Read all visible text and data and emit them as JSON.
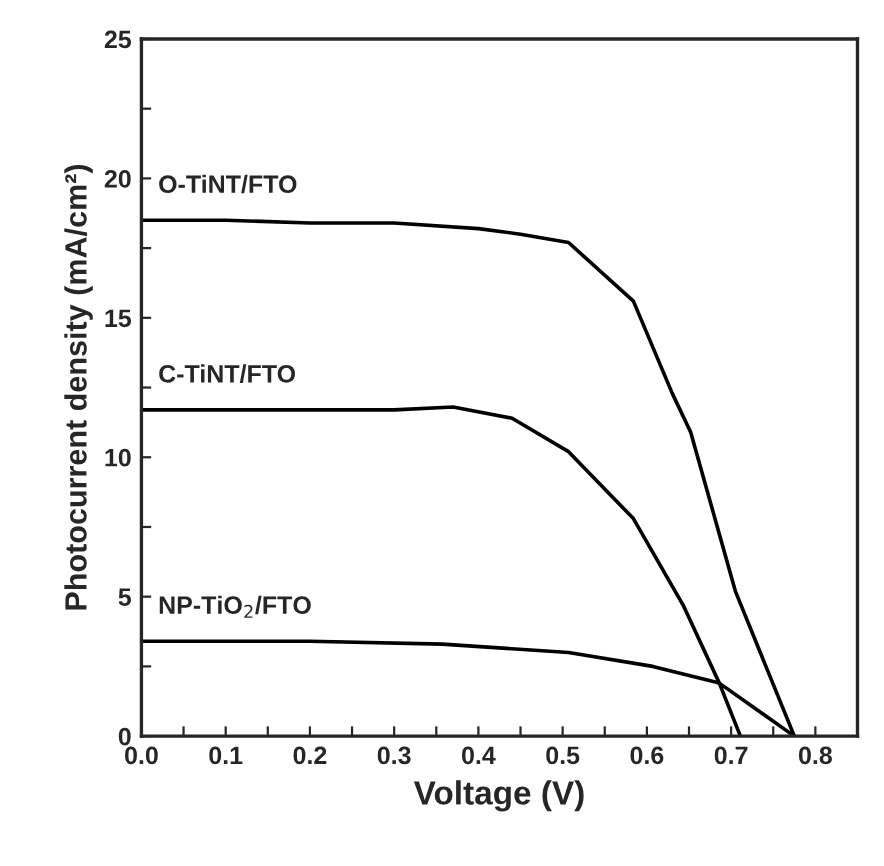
{
  "chart_data": {
    "type": "line",
    "xlabel": "Voltage (V)",
    "ylabel": "Photocurrent density (mA/cm²)",
    "xlim": [
      0,
      0.85
    ],
    "ylim": [
      0,
      25
    ],
    "xticks": [
      {
        "value": 0,
        "label": "0.0"
      },
      {
        "value": 0.05,
        "label": null
      },
      0.1,
      {
        "value": 0.15,
        "label": null
      },
      0.2,
      {
        "value": 0.25,
        "label": null
      },
      0.3,
      {
        "value": 0.35,
        "label": null
      },
      0.4,
      {
        "value": 0.45,
        "label": null
      },
      0.5,
      {
        "value": 0.55,
        "label": null
      },
      0.6,
      {
        "value": 0.65,
        "label": null
      },
      0.7,
      {
        "value": 0.75,
        "label": null
      },
      0.8
    ],
    "yticks": [
      0,
      {
        "value": 2.5,
        "label": null
      },
      5,
      {
        "value": 7.5,
        "label": null
      },
      10,
      {
        "value": 12.5,
        "label": null
      },
      15,
      {
        "value": 17.5,
        "label": null
      },
      20,
      {
        "value": 22.5,
        "label": null
      },
      25
    ],
    "grid": false,
    "legend": false,
    "marker": "none",
    "line_style": "solid",
    "series": [
      {
        "name": "O-TiNT/FTO",
        "color": "#000000",
        "x": [
          0,
          0.1,
          0.2,
          0.3,
          0.4,
          0.45,
          0.507,
          0.584,
          0.63,
          0.652,
          0.705,
          0.775
        ],
        "values": [
          18.5,
          18.5,
          18.4,
          18.4,
          18.2,
          18.0,
          17.7,
          15.6,
          12.3,
          10.9,
          5.2,
          0
        ]
      },
      {
        "name": "C-TiNT/FTO",
        "color": "#000000",
        "x": [
          0,
          0.1,
          0.2,
          0.3,
          0.37,
          0.44,
          0.507,
          0.584,
          0.643,
          0.686,
          0.711
        ],
        "values": [
          11.7,
          11.7,
          11.7,
          11.7,
          11.8,
          11.4,
          10.2,
          7.8,
          4.7,
          1.9,
          0
        ]
      },
      {
        "name": "NP-TiO$_{2}$/FTO",
        "color": "#000000",
        "x": [
          0,
          0.1,
          0.2,
          0.357,
          0.507,
          0.607,
          0.686,
          0.775
        ],
        "values": [
          3.4,
          3.4,
          3.4,
          3.3,
          3.0,
          2.5,
          1.9,
          0
        ]
      }
    ]
  }
}
